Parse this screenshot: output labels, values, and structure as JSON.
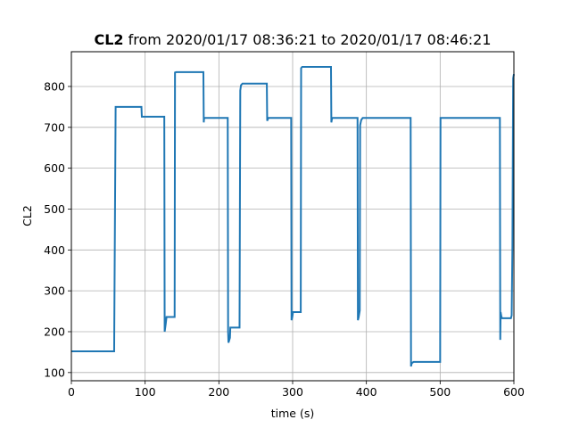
{
  "chart_data": {
    "type": "line",
    "title_bold": "CL2",
    "title_rest": " from 2020/01/17 08:36:21 to 2020/01/17 08:46:21",
    "xlabel": "time (s)",
    "ylabel": "CL2",
    "xlim": [
      0,
      600
    ],
    "ylim": [
      80,
      885
    ],
    "xticks": [
      0,
      100,
      200,
      300,
      400,
      500,
      600
    ],
    "yticks": [
      100,
      200,
      300,
      400,
      500,
      600,
      700,
      800
    ],
    "grid": true,
    "series_color": "#1f77b4",
    "series": [
      {
        "x": [
          0,
          58,
          60,
          95,
          95.5,
          126,
          126.5,
          128,
          129,
          130,
          140,
          140.5,
          142,
          179,
          179.5,
          180,
          212,
          212.5,
          213,
          215,
          215.5,
          228,
          229,
          230,
          232,
          265,
          265.5,
          267,
          298,
          298.5,
          299.5,
          300.5,
          302,
          311,
          311.5,
          313,
          352,
          352.5,
          353.5,
          388,
          388.5,
          389.5,
          391,
          391.5,
          393,
          395,
          460,
          460.5,
          461.5,
          464,
          500,
          500.5,
          502,
          581,
          581.5,
          582,
          583,
          584,
          594,
          596,
          597,
          598,
          599,
          600
        ],
        "y": [
          152,
          152,
          750,
          750,
          726,
          726,
          200,
          220,
          236,
          236,
          236,
          834,
          835,
          835,
          712,
          723,
          723,
          200,
          173,
          185,
          210,
          210,
          790,
          803,
          807,
          807,
          716,
          723,
          723,
          228,
          235,
          248,
          248,
          248,
          845,
          848,
          848,
          712,
          723,
          723,
          228,
          235,
          252,
          705,
          718,
          723,
          723,
          115,
          123,
          126,
          126,
          723,
          723,
          723,
          180,
          248,
          237,
          233,
          233,
          233,
          240,
          410,
          820,
          830
        ]
      }
    ]
  }
}
